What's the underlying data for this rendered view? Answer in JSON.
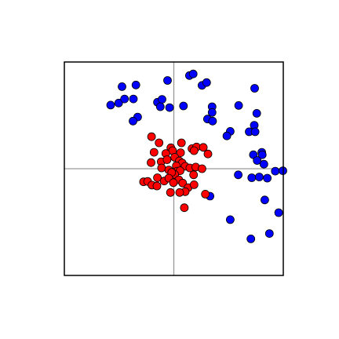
{
  "chart_data": {
    "type": "scatter",
    "title": "",
    "xlabel": "",
    "ylabel": "",
    "xlim": [
      -2.6,
      2.6
    ],
    "ylim": [
      -2.6,
      2.6
    ],
    "grid": false,
    "reference_lines": {
      "x": 0,
      "y": 0,
      "color": "#999999"
    },
    "series": [
      {
        "color": "#0000ff",
        "points": [
          [
            -1.23,
            2.0
          ],
          [
            -0.9,
            2.04
          ],
          [
            -0.15,
            2.15
          ],
          [
            0.37,
            2.27
          ],
          [
            0.46,
            2.31
          ],
          [
            0.67,
            2.03
          ],
          [
            0.78,
            2.1
          ],
          [
            1.92,
            1.96
          ],
          [
            -1.5,
            1.55
          ],
          [
            -1.31,
            1.6
          ],
          [
            -1.17,
            1.7
          ],
          [
            -0.96,
            1.7
          ],
          [
            -0.39,
            1.62
          ],
          [
            -0.28,
            1.69
          ],
          [
            -0.32,
            1.51
          ],
          [
            -0.1,
            1.49
          ],
          [
            0.23,
            1.53
          ],
          [
            0.91,
            1.51
          ],
          [
            0.91,
            1.37
          ],
          [
            0.8,
            1.21
          ],
          [
            0.92,
            1.16
          ],
          [
            1.54,
            1.54
          ],
          [
            1.97,
            1.35
          ],
          [
            -0.86,
            1.26
          ],
          [
            -0.97,
            1.16
          ],
          [
            1.79,
            0.9
          ],
          [
            1.91,
            1.06
          ],
          [
            1.93,
            0.9
          ],
          [
            1.34,
            0.91
          ],
          [
            1.26,
            0.8
          ],
          [
            1.89,
            0.34
          ],
          [
            1.98,
            0.2
          ],
          [
            2.09,
            0.4
          ],
          [
            2.1,
            0.34
          ],
          [
            2.14,
            0.11
          ],
          [
            1.53,
            -0.15
          ],
          [
            1.85,
            -0.22
          ],
          [
            2.03,
            -0.2
          ],
          [
            2.22,
            -0.23
          ],
          [
            2.41,
            -0.06
          ],
          [
            2.59,
            -0.05
          ],
          [
            0.86,
            -0.67
          ],
          [
            2.16,
            -0.76
          ],
          [
            2.49,
            -1.07
          ],
          [
            1.34,
            -1.24
          ],
          [
            2.27,
            -1.58
          ],
          [
            1.83,
            -1.71
          ]
        ]
      },
      {
        "color": "#ff0000",
        "points": [
          [
            -0.53,
            0.78
          ],
          [
            -0.35,
            0.63
          ],
          [
            0.18,
            0.63
          ],
          [
            -0.07,
            0.51
          ],
          [
            0.43,
            0.49
          ],
          [
            0.54,
            0.53
          ],
          [
            0.7,
            0.52
          ],
          [
            -0.47,
            0.4
          ],
          [
            -0.03,
            0.44
          ],
          [
            -0.19,
            0.37
          ],
          [
            0.16,
            0.39
          ],
          [
            0.48,
            0.44
          ],
          [
            0.81,
            0.36
          ],
          [
            -0.54,
            0.15
          ],
          [
            -0.3,
            0.17
          ],
          [
            -0.16,
            0.22
          ],
          [
            0.02,
            0.28
          ],
          [
            0.13,
            0.19
          ],
          [
            0.2,
            0.14
          ],
          [
            0.27,
            0.06
          ],
          [
            0.38,
            0.02
          ],
          [
            0.52,
            0.04
          ],
          [
            0.67,
            0.0
          ],
          [
            0.06,
            0.07
          ],
          [
            -0.29,
            0.02
          ],
          [
            -0.12,
            -0.03
          ],
          [
            0.08,
            -0.06
          ],
          [
            0.15,
            -0.05
          ],
          [
            0.47,
            -0.15
          ],
          [
            0.02,
            -0.14
          ],
          [
            -0.05,
            -0.09
          ],
          [
            -0.39,
            -0.22
          ],
          [
            -0.23,
            -0.3
          ],
          [
            -0.12,
            -0.23
          ],
          [
            0.12,
            -0.27
          ],
          [
            -0.72,
            -0.32
          ],
          [
            -0.62,
            -0.31
          ],
          [
            -0.52,
            -0.4
          ],
          [
            -0.4,
            -0.42
          ],
          [
            -0.01,
            -0.34
          ],
          [
            0.21,
            -0.35
          ],
          [
            0.34,
            -0.46
          ],
          [
            0.48,
            -0.39
          ],
          [
            0.27,
            -0.56
          ],
          [
            0.14,
            -0.58
          ],
          [
            -0.08,
            -0.58
          ],
          [
            0.75,
            -0.62
          ],
          [
            0.25,
            -0.95
          ]
        ]
      }
    ]
  }
}
